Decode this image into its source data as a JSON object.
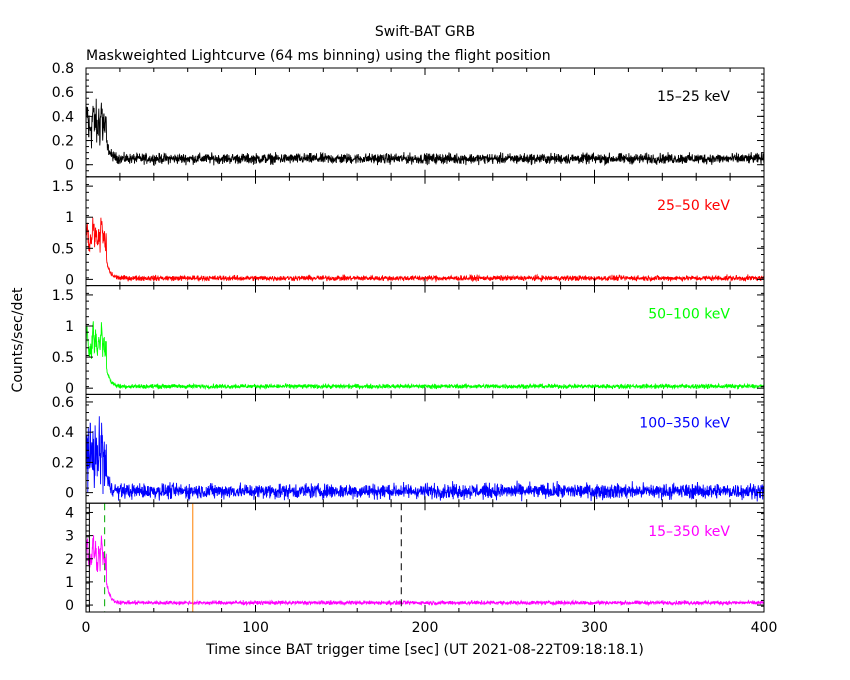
{
  "chart_data": {
    "type": "line",
    "title": "Swift-BAT GRB",
    "subtitle": "Maskweighted Lightcurve (64 ms binning) using the flight position",
    "xlabel": "Time since BAT trigger time [sec] (UT 2021-08-22T09:18:18.1)",
    "ylabel": "Counts/sec/det",
    "xlim": [
      0,
      400
    ],
    "xticks": [
      0,
      100,
      200,
      300,
      400
    ],
    "xtick_labels": [
      "0",
      "100",
      "200",
      "300",
      "400"
    ],
    "panels": [
      {
        "label": "15–25 keV",
        "color": "#000000",
        "ylim": [
          -0.1,
          0.8
        ],
        "yticks": [
          0,
          0.2,
          0.4,
          0.6,
          0.8
        ],
        "ytick_labels": [
          "0",
          "0.2",
          "0.4",
          "0.6",
          "0.8"
        ],
        "burst_peak": 0.42,
        "tail_level": 0.05,
        "noise": 0.03
      },
      {
        "label": "25–50 keV",
        "color": "#ff0000",
        "ylim": [
          -0.1,
          1.65
        ],
        "yticks": [
          0,
          0.5,
          1,
          1.5
        ],
        "ytick_labels": [
          "0",
          "0.5",
          "1",
          "1.5"
        ],
        "burst_peak": 0.85,
        "tail_level": 0.02,
        "noise": 0.03
      },
      {
        "label": "50–100 keV",
        "color": "#00ff00",
        "ylim": [
          -0.1,
          1.65
        ],
        "yticks": [
          0,
          0.5,
          1,
          1.5
        ],
        "ytick_labels": [
          "0",
          "0.5",
          "1",
          "1.5"
        ],
        "burst_peak": 0.9,
        "tail_level": 0.03,
        "noise": 0.025
      },
      {
        "label": "100–350 keV",
        "color": "#0000ff",
        "ylim": [
          -0.07,
          0.65
        ],
        "yticks": [
          0,
          0.2,
          0.4,
          0.6
        ],
        "ytick_labels": [
          "0",
          "0.2",
          "0.4",
          "0.6"
        ],
        "burst_peak": 0.3,
        "tail_level": 0.01,
        "noise": 0.035
      },
      {
        "label": "15–350 keV",
        "color": "#ff00ff",
        "ylim": [
          -0.3,
          4.4
        ],
        "yticks": [
          0,
          1,
          2,
          3,
          4
        ],
        "ytick_labels": [
          "0",
          "1",
          "2",
          "3",
          "4"
        ],
        "burst_peak": 2.6,
        "tail_level": 0.1,
        "noise": 0.06
      }
    ],
    "burst": {
      "start": 0,
      "end": 12,
      "decay_end": 20
    },
    "markers": [
      {
        "t": 0,
        "style": "dashed",
        "color": "#00aa00"
      },
      {
        "t": 2,
        "style": "solid",
        "color": "#000000"
      },
      {
        "t": 11,
        "style": "dashed",
        "color": "#00aa00"
      },
      {
        "t": 63,
        "style": "solid",
        "color": "#ff8000"
      },
      {
        "t": 186,
        "style": "dashed",
        "color": "#000000"
      }
    ]
  }
}
